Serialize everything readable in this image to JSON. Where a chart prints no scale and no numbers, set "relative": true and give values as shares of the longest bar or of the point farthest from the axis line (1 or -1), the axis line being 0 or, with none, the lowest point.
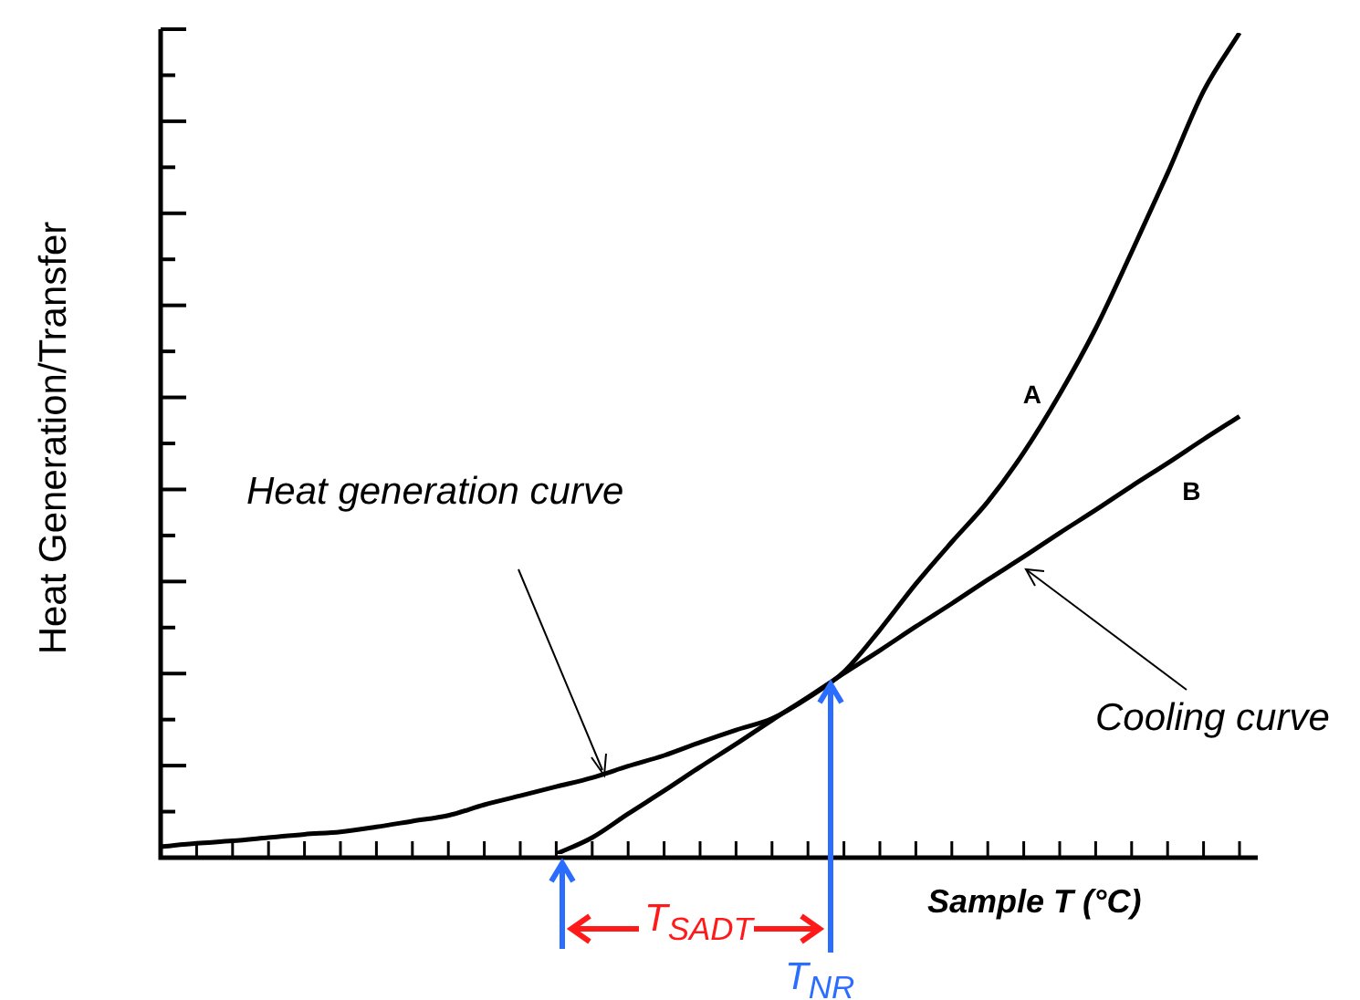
{
  "chart_data": {
    "type": "line",
    "relative": true,
    "marker": "none",
    "xlabel": "Sample T (°C)",
    "ylabel": "Heat Generation/Transfer",
    "annotations": [
      "Heat generation curve",
      "Cooling curve",
      "T$_{SADT}$",
      "T$_{NR}$"
    ],
    "categories": [
      null,
      null,
      null,
      null,
      null,
      null,
      null,
      null,
      null,
      null,
      null,
      null,
      null,
      null,
      null,
      null,
      null,
      null,
      null,
      null,
      null,
      null,
      null,
      null,
      null,
      null,
      null,
      null,
      null,
      null,
      null
    ],
    "series": [
      {
        "name": "A",
        "color": "#000000",
        "values": [
          0.009,
          0.013,
          0.016,
          0.02,
          0.024,
          0.027,
          0.033,
          0.04,
          0.047,
          0.06,
          0.071,
          0.082,
          0.093,
          0.107,
          0.12,
          0.136,
          0.151,
          0.165,
          0.19,
          0.222,
          0.273,
          0.329,
          0.38,
          0.429,
          0.489,
          0.56,
          0.64,
          0.733,
          0.829,
          0.929,
          1.0
        ]
      },
      {
        "name": "B",
        "color": "#000000",
        "values": [
          null,
          null,
          null,
          null,
          null,
          null,
          null,
          null,
          null,
          null,
          null,
          0,
          0.02,
          0.049,
          0.077,
          0.106,
          0.134,
          0.163,
          0.191,
          0.22,
          0.248,
          0.277,
          0.305,
          0.334,
          0.362,
          0.391,
          0.419,
          0.448,
          0.476,
          0.505,
          0.533
        ]
      }
    ]
  }
}
